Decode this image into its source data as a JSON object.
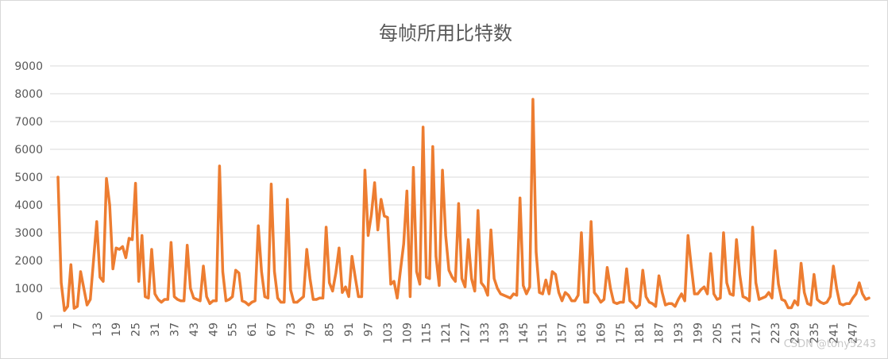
{
  "chart_data": {
    "type": "line",
    "title": "每帧所用比特数",
    "xlabel": "",
    "ylabel": "",
    "ylim": [
      0,
      9000
    ],
    "yticks": [
      0,
      1000,
      2000,
      3000,
      4000,
      5000,
      6000,
      7000,
      8000,
      9000
    ],
    "xticks": [
      1,
      7,
      13,
      19,
      25,
      31,
      37,
      43,
      49,
      55,
      61,
      67,
      73,
      79,
      85,
      91,
      97,
      103,
      109,
      115,
      121,
      127,
      133,
      139,
      145,
      151,
      157,
      163,
      169,
      175,
      181,
      187,
      193,
      199,
      205,
      211,
      217,
      223,
      229,
      235,
      241,
      247
    ],
    "grid": true,
    "legend": "none",
    "color": "#ED7D31",
    "points": [
      [
        1,
        5000
      ],
      [
        2,
        1200
      ],
      [
        3,
        200
      ],
      [
        4,
        350
      ],
      [
        5,
        1850
      ],
      [
        6,
        280
      ],
      [
        7,
        350
      ],
      [
        8,
        1600
      ],
      [
        9,
        1000
      ],
      [
        10,
        400
      ],
      [
        11,
        600
      ],
      [
        12,
        2000
      ],
      [
        13,
        3400
      ],
      [
        14,
        1400
      ],
      [
        15,
        1250
      ],
      [
        16,
        4950
      ],
      [
        17,
        4000
      ],
      [
        18,
        1700
      ],
      [
        19,
        2450
      ],
      [
        20,
        2400
      ],
      [
        21,
        2500
      ],
      [
        22,
        2100
      ],
      [
        23,
        2800
      ],
      [
        24,
        2750
      ],
      [
        25,
        4780
      ],
      [
        26,
        1250
      ],
      [
        27,
        2900
      ],
      [
        28,
        700
      ],
      [
        29,
        650
      ],
      [
        30,
        2400
      ],
      [
        31,
        800
      ],
      [
        32,
        600
      ],
      [
        33,
        500
      ],
      [
        34,
        600
      ],
      [
        35,
        600
      ],
      [
        36,
        2650
      ],
      [
        37,
        700
      ],
      [
        38,
        600
      ],
      [
        39,
        550
      ],
      [
        40,
        550
      ],
      [
        41,
        2550
      ],
      [
        42,
        1000
      ],
      [
        43,
        650
      ],
      [
        44,
        600
      ],
      [
        45,
        550
      ],
      [
        46,
        1800
      ],
      [
        47,
        700
      ],
      [
        48,
        450
      ],
      [
        49,
        550
      ],
      [
        50,
        550
      ],
      [
        51,
        5400
      ],
      [
        52,
        1600
      ],
      [
        53,
        550
      ],
      [
        54,
        600
      ],
      [
        55,
        700
      ],
      [
        56,
        1650
      ],
      [
        57,
        1550
      ],
      [
        58,
        550
      ],
      [
        59,
        500
      ],
      [
        60,
        400
      ],
      [
        61,
        500
      ],
      [
        62,
        550
      ],
      [
        63,
        3250
      ],
      [
        64,
        1600
      ],
      [
        65,
        700
      ],
      [
        66,
        650
      ],
      [
        67,
        4750
      ],
      [
        68,
        1600
      ],
      [
        69,
        650
      ],
      [
        70,
        500
      ],
      [
        71,
        500
      ],
      [
        72,
        4200
      ],
      [
        73,
        950
      ],
      [
        74,
        500
      ],
      [
        75,
        500
      ],
      [
        76,
        600
      ],
      [
        77,
        700
      ],
      [
        78,
        2400
      ],
      [
        79,
        1350
      ],
      [
        80,
        600
      ],
      [
        81,
        600
      ],
      [
        82,
        650
      ],
      [
        83,
        650
      ],
      [
        84,
        3200
      ],
      [
        85,
        1200
      ],
      [
        86,
        900
      ],
      [
        87,
        1550
      ],
      [
        88,
        2450
      ],
      [
        89,
        850
      ],
      [
        90,
        1050
      ],
      [
        91,
        700
      ],
      [
        92,
        2150
      ],
      [
        93,
        1400
      ],
      [
        94,
        700
      ],
      [
        95,
        700
      ],
      [
        96,
        5250
      ],
      [
        97,
        2900
      ],
      [
        98,
        3650
      ],
      [
        99,
        4800
      ],
      [
        100,
        3100
      ],
      [
        101,
        4200
      ],
      [
        102,
        3600
      ],
      [
        103,
        3550
      ],
      [
        104,
        1150
      ],
      [
        105,
        1250
      ],
      [
        106,
        650
      ],
      [
        107,
        1650
      ],
      [
        108,
        2600
      ],
      [
        109,
        4500
      ],
      [
        110,
        700
      ],
      [
        111,
        5350
      ],
      [
        112,
        1600
      ],
      [
        113,
        1150
      ],
      [
        114,
        6800
      ],
      [
        115,
        1400
      ],
      [
        116,
        1350
      ],
      [
        117,
        6100
      ],
      [
        118,
        2150
      ],
      [
        119,
        1100
      ],
      [
        120,
        5250
      ],
      [
        121,
        2900
      ],
      [
        122,
        1650
      ],
      [
        123,
        1400
      ],
      [
        124,
        1250
      ],
      [
        125,
        4050
      ],
      [
        126,
        1350
      ],
      [
        127,
        1050
      ],
      [
        128,
        2750
      ],
      [
        129,
        1350
      ],
      [
        130,
        900
      ],
      [
        131,
        3800
      ],
      [
        132,
        1200
      ],
      [
        133,
        1050
      ],
      [
        134,
        750
      ],
      [
        135,
        3100
      ],
      [
        136,
        1350
      ],
      [
        137,
        1000
      ],
      [
        138,
        800
      ],
      [
        139,
        750
      ],
      [
        140,
        700
      ],
      [
        141,
        650
      ],
      [
        142,
        800
      ],
      [
        143,
        750
      ],
      [
        144,
        4250
      ],
      [
        145,
        1100
      ],
      [
        146,
        800
      ],
      [
        147,
        1050
      ],
      [
        148,
        7800
      ],
      [
        149,
        2300
      ],
      [
        150,
        850
      ],
      [
        151,
        800
      ],
      [
        152,
        1300
      ],
      [
        153,
        800
      ],
      [
        154,
        1600
      ],
      [
        155,
        1500
      ],
      [
        156,
        850
      ],
      [
        157,
        550
      ],
      [
        158,
        850
      ],
      [
        159,
        750
      ],
      [
        160,
        550
      ],
      [
        161,
        550
      ],
      [
        162,
        750
      ],
      [
        163,
        3000
      ],
      [
        164,
        500
      ],
      [
        165,
        500
      ],
      [
        166,
        3400
      ],
      [
        167,
        850
      ],
      [
        168,
        700
      ],
      [
        169,
        500
      ],
      [
        170,
        600
      ],
      [
        171,
        1750
      ],
      [
        172,
        1000
      ],
      [
        173,
        500
      ],
      [
        174,
        450
      ],
      [
        175,
        500
      ],
      [
        176,
        500
      ],
      [
        177,
        1700
      ],
      [
        178,
        550
      ],
      [
        179,
        450
      ],
      [
        180,
        300
      ],
      [
        181,
        400
      ],
      [
        182,
        1650
      ],
      [
        183,
        700
      ],
      [
        184,
        500
      ],
      [
        185,
        450
      ],
      [
        186,
        350
      ],
      [
        187,
        1450
      ],
      [
        188,
        850
      ],
      [
        189,
        400
      ],
      [
        190,
        450
      ],
      [
        191,
        450
      ],
      [
        192,
        350
      ],
      [
        193,
        600
      ],
      [
        194,
        800
      ],
      [
        195,
        550
      ],
      [
        196,
        2900
      ],
      [
        197,
        1800
      ],
      [
        198,
        800
      ],
      [
        199,
        800
      ],
      [
        200,
        950
      ],
      [
        201,
        1050
      ],
      [
        202,
        800
      ],
      [
        203,
        2250
      ],
      [
        204,
        800
      ],
      [
        205,
        600
      ],
      [
        206,
        650
      ],
      [
        207,
        3000
      ],
      [
        208,
        1200
      ],
      [
        209,
        800
      ],
      [
        210,
        750
      ],
      [
        211,
        2750
      ],
      [
        212,
        1500
      ],
      [
        213,
        700
      ],
      [
        214,
        650
      ],
      [
        215,
        550
      ],
      [
        216,
        3200
      ],
      [
        217,
        1200
      ],
      [
        218,
        600
      ],
      [
        219,
        650
      ],
      [
        220,
        700
      ],
      [
        221,
        850
      ],
      [
        222,
        650
      ],
      [
        223,
        2350
      ],
      [
        224,
        1150
      ],
      [
        225,
        600
      ],
      [
        226,
        550
      ],
      [
        227,
        300
      ],
      [
        228,
        300
      ],
      [
        229,
        550
      ],
      [
        230,
        400
      ],
      [
        231,
        1900
      ],
      [
        232,
        850
      ],
      [
        233,
        450
      ],
      [
        234,
        400
      ],
      [
        235,
        1500
      ],
      [
        236,
        600
      ],
      [
        237,
        500
      ],
      [
        238,
        450
      ],
      [
        239,
        500
      ],
      [
        240,
        700
      ],
      [
        241,
        1800
      ],
      [
        242,
        1000
      ],
      [
        243,
        450
      ],
      [
        244,
        400
      ],
      [
        245,
        450
      ],
      [
        246,
        450
      ],
      [
        247,
        650
      ],
      [
        248,
        800
      ],
      [
        249,
        1200
      ],
      [
        250,
        800
      ],
      [
        251,
        600
      ],
      [
        252,
        650
      ]
    ]
  },
  "watermark": "CSDN @tony5243"
}
